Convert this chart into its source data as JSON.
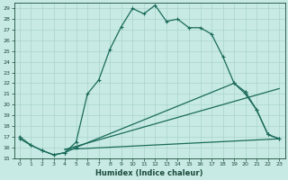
{
  "xlabel": "Humidex (Indice chaleur)",
  "xlim": [
    -0.5,
    23.5
  ],
  "ylim": [
    15,
    29.5
  ],
  "yticks": [
    15,
    16,
    17,
    18,
    19,
    20,
    21,
    22,
    23,
    24,
    25,
    26,
    27,
    28,
    29
  ],
  "xticks": [
    0,
    1,
    2,
    3,
    4,
    5,
    6,
    7,
    8,
    9,
    10,
    11,
    12,
    13,
    14,
    15,
    16,
    17,
    18,
    19,
    20,
    21,
    22,
    23
  ],
  "bg_color": "#c8eae4",
  "grid_color": "#a8d4cc",
  "line_color": "#1a6b5a",
  "line1_x": [
    0,
    1,
    2,
    3,
    4,
    5,
    6,
    7,
    8,
    9,
    10,
    11,
    12,
    13,
    14,
    15,
    16,
    17,
    18,
    19,
    20,
    21,
    22,
    23
  ],
  "line1_y": [
    17.0,
    16.2,
    15.7,
    15.3,
    15.5,
    16.5,
    21.0,
    22.3,
    25.2,
    27.3,
    29.0,
    28.5,
    29.3,
    27.8,
    28.0,
    27.2,
    27.2,
    26.6,
    24.5,
    22.0,
    21.0,
    19.5,
    17.2,
    16.8
  ],
  "line2_x": [
    0,
    1,
    2,
    3,
    4,
    5,
    19,
    20,
    21,
    22,
    23
  ],
  "line2_y": [
    16.8,
    16.2,
    15.7,
    15.3,
    15.5,
    16.0,
    22.0,
    21.2,
    19.5,
    17.2,
    16.8
  ],
  "line3_x": [
    4,
    23
  ],
  "line3_y": [
    15.8,
    21.5
  ],
  "line4_x": [
    4,
    23
  ],
  "line4_y": [
    15.8,
    16.8
  ]
}
